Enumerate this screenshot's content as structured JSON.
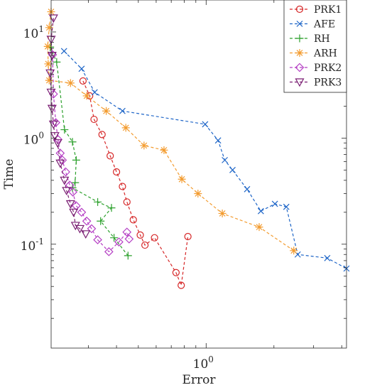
{
  "chart_data": {
    "type": "line",
    "title": "",
    "xlabel": "Error",
    "ylabel": "Time",
    "xscale": "log",
    "yscale": "log",
    "xlim": [
      0.205,
      4.2
    ],
    "ylim": [
      0.0105,
      20
    ],
    "grid": false,
    "legend_position": "top-right",
    "x_ticks": [
      {
        "value": 1,
        "base": "10",
        "exp": "0"
      }
    ],
    "y_ticks": [
      {
        "value": 10,
        "base": "10",
        "exp": "1"
      },
      {
        "value": 1,
        "base": "10",
        "exp": "0"
      },
      {
        "value": 0.1,
        "base": "10",
        "exp": "-1"
      }
    ],
    "series": [
      {
        "name": "PRK1",
        "color": "#d62728",
        "marker": "circle",
        "points": [
          [
            0.284,
            3.45
          ],
          [
            0.304,
            2.5
          ],
          [
            0.318,
            1.5
          ],
          [
            0.345,
            1.08
          ],
          [
            0.375,
            0.68
          ],
          [
            0.4,
            0.48
          ],
          [
            0.425,
            0.35
          ],
          [
            0.445,
            0.25
          ],
          [
            0.475,
            0.17
          ],
          [
            0.51,
            0.122
          ],
          [
            0.535,
            0.098
          ],
          [
            0.59,
            0.115
          ],
          [
            0.735,
            0.054
          ],
          [
            0.775,
            0.041
          ],
          [
            0.83,
            0.118
          ]
        ]
      },
      {
        "name": "AFE",
        "color": "#1f66c8",
        "marker": "x",
        "points": [
          [
            0.234,
            6.6
          ],
          [
            0.28,
            4.5
          ],
          [
            0.32,
            2.7
          ],
          [
            0.425,
            1.8
          ],
          [
            0.99,
            1.35
          ],
          [
            1.13,
            0.95
          ],
          [
            1.21,
            0.62
          ],
          [
            1.31,
            0.5
          ],
          [
            1.52,
            0.33
          ],
          [
            1.75,
            0.205
          ],
          [
            2.02,
            0.24
          ],
          [
            2.27,
            0.225
          ],
          [
            2.55,
            0.08
          ],
          [
            3.45,
            0.074
          ],
          [
            4.2,
            0.059
          ]
        ]
      },
      {
        "name": "RH",
        "color": "#2ca02c",
        "marker": "plus",
        "points": [
          [
            0.203,
            7.2
          ],
          [
            0.217,
            5.2
          ],
          [
            0.235,
            1.2
          ],
          [
            0.255,
            0.92
          ],
          [
            0.265,
            0.62
          ],
          [
            0.262,
            0.38
          ],
          [
            0.255,
            0.34
          ],
          [
            0.33,
            0.25
          ],
          [
            0.38,
            0.22
          ],
          [
            0.34,
            0.165
          ],
          [
            0.39,
            0.115
          ],
          [
            0.45,
            0.078
          ]
        ]
      },
      {
        "name": "ARH",
        "color": "#f39c30",
        "marker": "asterisk",
        "points": [
          [
            0.205,
            15.5
          ],
          [
            0.201,
            11
          ],
          [
            0.198,
            7.3
          ],
          [
            0.199,
            5
          ],
          [
            0.201,
            3.5
          ],
          [
            0.25,
            3.3
          ],
          [
            0.295,
            2.5
          ],
          [
            0.36,
            1.8
          ],
          [
            0.44,
            1.25
          ],
          [
            0.53,
            0.85
          ],
          [
            0.65,
            0.77
          ],
          [
            0.78,
            0.41
          ],
          [
            0.92,
            0.3
          ],
          [
            1.18,
            0.195
          ],
          [
            1.72,
            0.145
          ],
          [
            2.45,
            0.087
          ]
        ]
      },
      {
        "name": "PRK2",
        "color": "#b53fc4",
        "marker": "diamond",
        "points": [
          [
            0.208,
            6.1
          ],
          [
            0.21,
            2.6
          ],
          [
            0.215,
            1.4
          ],
          [
            0.22,
            0.97
          ],
          [
            0.225,
            0.72
          ],
          [
            0.23,
            0.62
          ],
          [
            0.238,
            0.48
          ],
          [
            0.248,
            0.36
          ],
          [
            0.256,
            0.31
          ],
          [
            0.265,
            0.23
          ],
          [
            0.28,
            0.2
          ],
          [
            0.295,
            0.165
          ],
          [
            0.31,
            0.14
          ],
          [
            0.33,
            0.11
          ],
          [
            0.37,
            0.085
          ],
          [
            0.41,
            0.105
          ],
          [
            0.445,
            0.13
          ],
          [
            0.455,
            0.112
          ]
        ]
      },
      {
        "name": "PRK3",
        "color": "#7a1f73",
        "marker": "triangle-down",
        "points": [
          [
            0.21,
            13.5
          ],
          [
            0.205,
            8.5
          ],
          [
            0.207,
            6
          ],
          [
            0.203,
            4.1
          ],
          [
            0.205,
            2.7
          ],
          [
            0.207,
            1.9
          ],
          [
            0.21,
            1.35
          ],
          [
            0.213,
            1.05
          ],
          [
            0.219,
            0.9
          ],
          [
            0.225,
            0.58
          ],
          [
            0.235,
            0.4
          ],
          [
            0.24,
            0.32
          ],
          [
            0.25,
            0.24
          ],
          [
            0.258,
            0.2
          ],
          [
            0.263,
            0.15
          ],
          [
            0.275,
            0.14
          ],
          [
            0.292,
            0.125
          ]
        ]
      }
    ]
  }
}
